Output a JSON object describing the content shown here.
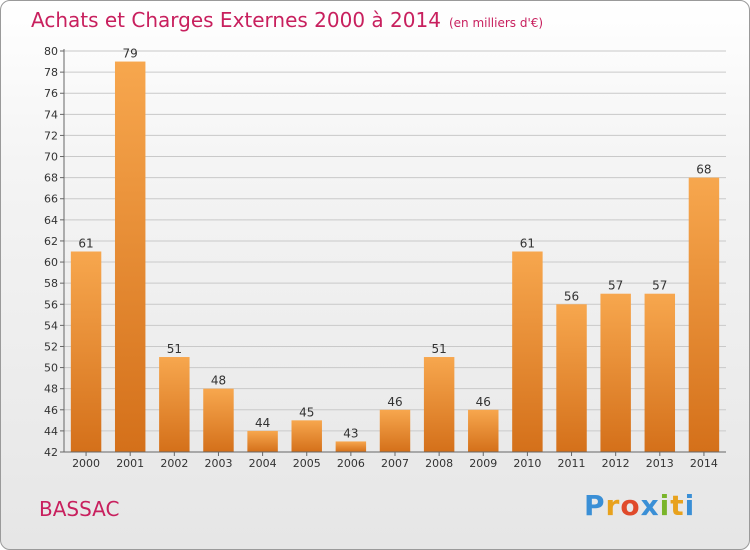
{
  "chart_data": {
    "type": "bar",
    "title": "Achats et Charges Externes 2000 à 2014",
    "unit_label": "(en milliers d'€)",
    "xlabel": "",
    "ylabel": "",
    "categories": [
      "2000",
      "2001",
      "2002",
      "2003",
      "2004",
      "2005",
      "2006",
      "2007",
      "2008",
      "2009",
      "2010",
      "2011",
      "2012",
      "2013",
      "2014"
    ],
    "values": [
      61,
      79,
      51,
      48,
      44,
      45,
      43,
      46,
      51,
      46,
      61,
      56,
      57,
      57,
      68
    ],
    "data_labels": [
      "61",
      "79",
      "51",
      "48",
      "44",
      "45",
      "43",
      "46",
      "51",
      "46",
      "61",
      "56",
      "57",
      "57",
      "68"
    ],
    "ylim": [
      42,
      80
    ],
    "yticks": [
      42,
      44,
      46,
      48,
      50,
      52,
      54,
      56,
      58,
      60,
      62,
      64,
      66,
      68,
      70,
      72,
      74,
      76,
      78,
      80
    ],
    "grid": true,
    "bar_color_top": "#f7a74e",
    "bar_color_bottom": "#d4701a"
  },
  "footer": {
    "commune": "BASSAC",
    "logo": [
      "P",
      "r",
      "o",
      "x",
      "i",
      "t",
      "i"
    ],
    "logo_colors": [
      "#3a8fd6",
      "#e8a21d",
      "#e04a2b",
      "#3a8fd6",
      "#7ab52a",
      "#e8a21d",
      "#3a8fd6"
    ]
  },
  "colors": {
    "title": "#c8205e",
    "grid": "#c9c9c9",
    "axis": "#666666"
  }
}
